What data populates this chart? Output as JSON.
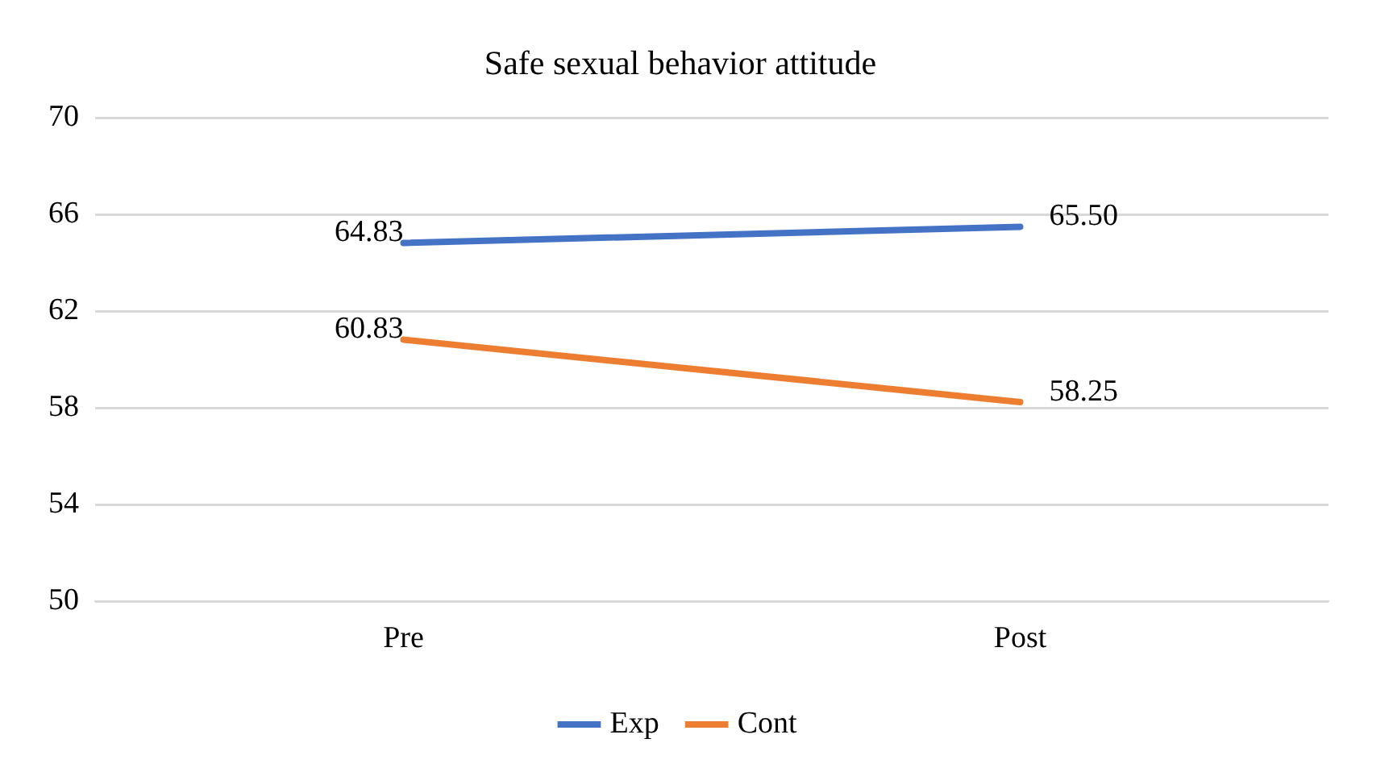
{
  "chart_data": {
    "type": "line",
    "title": "Safe sexual behavior attitude",
    "categories": [
      "Pre",
      "Post"
    ],
    "series": [
      {
        "name": "Exp",
        "color": "#4472c4",
        "values": [
          64.83,
          65.5
        ],
        "value_labels": [
          "64.83",
          "65.50"
        ]
      },
      {
        "name": "Cont",
        "color": "#ed7d31",
        "values": [
          60.83,
          58.25
        ],
        "value_labels": [
          "60.83",
          "58.25"
        ]
      }
    ],
    "ylim": [
      50,
      70
    ],
    "yticks": [
      50,
      54,
      58,
      62,
      66,
      70
    ],
    "grid": "y",
    "legend": "bottom",
    "marker": "none",
    "line_style": "solid"
  }
}
